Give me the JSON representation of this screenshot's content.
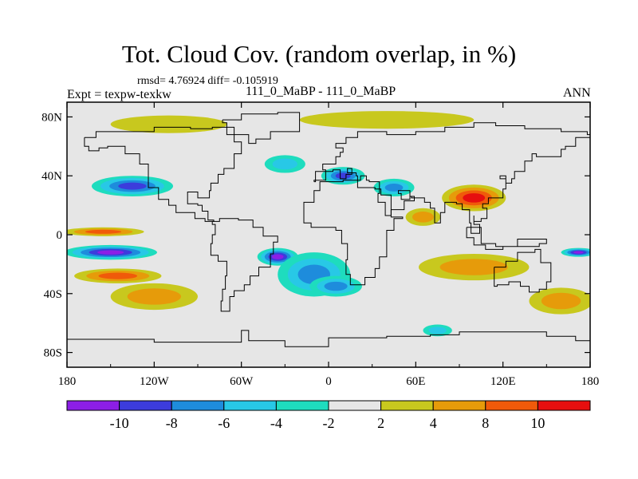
{
  "header": {
    "title": "Tot. Cloud Cov. (random overlap, in %)",
    "stats": "rmsd= 4.76924 diff= -0.105919",
    "experiment": "Expt = texpw-texkw",
    "period": "111_0_MaBP - 111_0_MaBP",
    "season": "ANN"
  },
  "chart_data": {
    "type": "heatmap",
    "title": "Tot. Cloud Cov. (random overlap, in %)",
    "units": "%",
    "x_axis": {
      "range": [
        -180,
        180
      ],
      "ticks": [
        -180,
        -120,
        -60,
        0,
        60,
        120,
        180
      ],
      "tick_labels": [
        "180",
        "120W",
        "60W",
        "0",
        "60E",
        "120E",
        "180"
      ]
    },
    "y_axis": {
      "range": [
        -90,
        90
      ],
      "ticks": [
        80,
        40,
        0,
        -40,
        -80
      ],
      "tick_labels": [
        "80N",
        "40N",
        "0",
        "40S",
        "80S"
      ]
    },
    "colorbar": {
      "levels": [
        -10,
        -8,
        -6,
        -4,
        -2,
        2,
        4,
        8,
        10
      ],
      "level_labels": [
        "-10",
        "-8",
        "-6",
        "-4",
        "-2",
        "2",
        "4",
        "8",
        "10"
      ],
      "colors": [
        "#8c1ee6",
        "#3c3cdc",
        "#1e8cdc",
        "#28c8e6",
        "#1edcbe",
        "#e6e6e6",
        "#c8c81e",
        "#e69b0a",
        "#f05a0a",
        "#e60f0f"
      ]
    },
    "features": [
      {
        "name": "north-pacific-decrease",
        "lon": -135,
        "lat": 33,
        "rx": 28,
        "ry": 7,
        "value": -9
      },
      {
        "name": "tropical-pacific-minimum",
        "lon": -150,
        "lat": -12,
        "rx": 32,
        "ry": 5,
        "value": -11
      },
      {
        "name": "tropical-pacific-increase-north",
        "lon": -155,
        "lat": 2,
        "rx": 28,
        "ry": 3,
        "value": 9
      },
      {
        "name": "south-pacific-increase",
        "lon": -145,
        "lat": -28,
        "rx": 30,
        "ry": 5,
        "value": 8
      },
      {
        "name": "southeast-pacific-increase",
        "lon": -120,
        "lat": -42,
        "rx": 30,
        "ry": 9,
        "value": 5
      },
      {
        "name": "south-america-decrease",
        "lon": -35,
        "lat": -15,
        "rx": 14,
        "ry": 6,
        "value": -10
      },
      {
        "name": "south-atlantic-decrease",
        "lon": -10,
        "lat": -27,
        "rx": 25,
        "ry": 15,
        "value": -6
      },
      {
        "name": "africa-decrease",
        "lon": 5,
        "lat": -35,
        "rx": 18,
        "ry": 7,
        "value": -7
      },
      {
        "name": "europe-decrease",
        "lon": 10,
        "lat": 40,
        "rx": 15,
        "ry": 6,
        "value": -8
      },
      {
        "name": "central-asia-decrease",
        "lon": 45,
        "lat": 32,
        "rx": 14,
        "ry": 6,
        "value": -6
      },
      {
        "name": "asia-increase",
        "lon": 100,
        "lat": 25,
        "rx": 22,
        "ry": 9,
        "value": 10
      },
      {
        "name": "arabian-sea-increase",
        "lon": 65,
        "lat": 12,
        "rx": 12,
        "ry": 6,
        "value": 7
      },
      {
        "name": "indian-ocean-increase",
        "lon": 100,
        "lat": -22,
        "rx": 38,
        "ry": 9,
        "value": 6
      },
      {
        "name": "west-pacific-minimum",
        "lon": 172,
        "lat": -12,
        "rx": 12,
        "ry": 3,
        "value": -11
      },
      {
        "name": "southern-ocean-increase",
        "lon": 160,
        "lat": -45,
        "rx": 22,
        "ry": 9,
        "value": 7
      },
      {
        "name": "arctic-increase-west",
        "lon": -110,
        "lat": 75,
        "rx": 40,
        "ry": 6,
        "value": 3
      },
      {
        "name": "arctic-increase-east",
        "lon": 40,
        "lat": 78,
        "rx": 60,
        "ry": 6,
        "value": 3
      },
      {
        "name": "north-atlantic-decrease",
        "lon": -30,
        "lat": 48,
        "rx": 14,
        "ry": 6,
        "value": -5
      },
      {
        "name": "antarctic-decrease",
        "lon": 75,
        "lat": -65,
        "rx": 10,
        "ry": 4,
        "value": -5
      }
    ]
  }
}
